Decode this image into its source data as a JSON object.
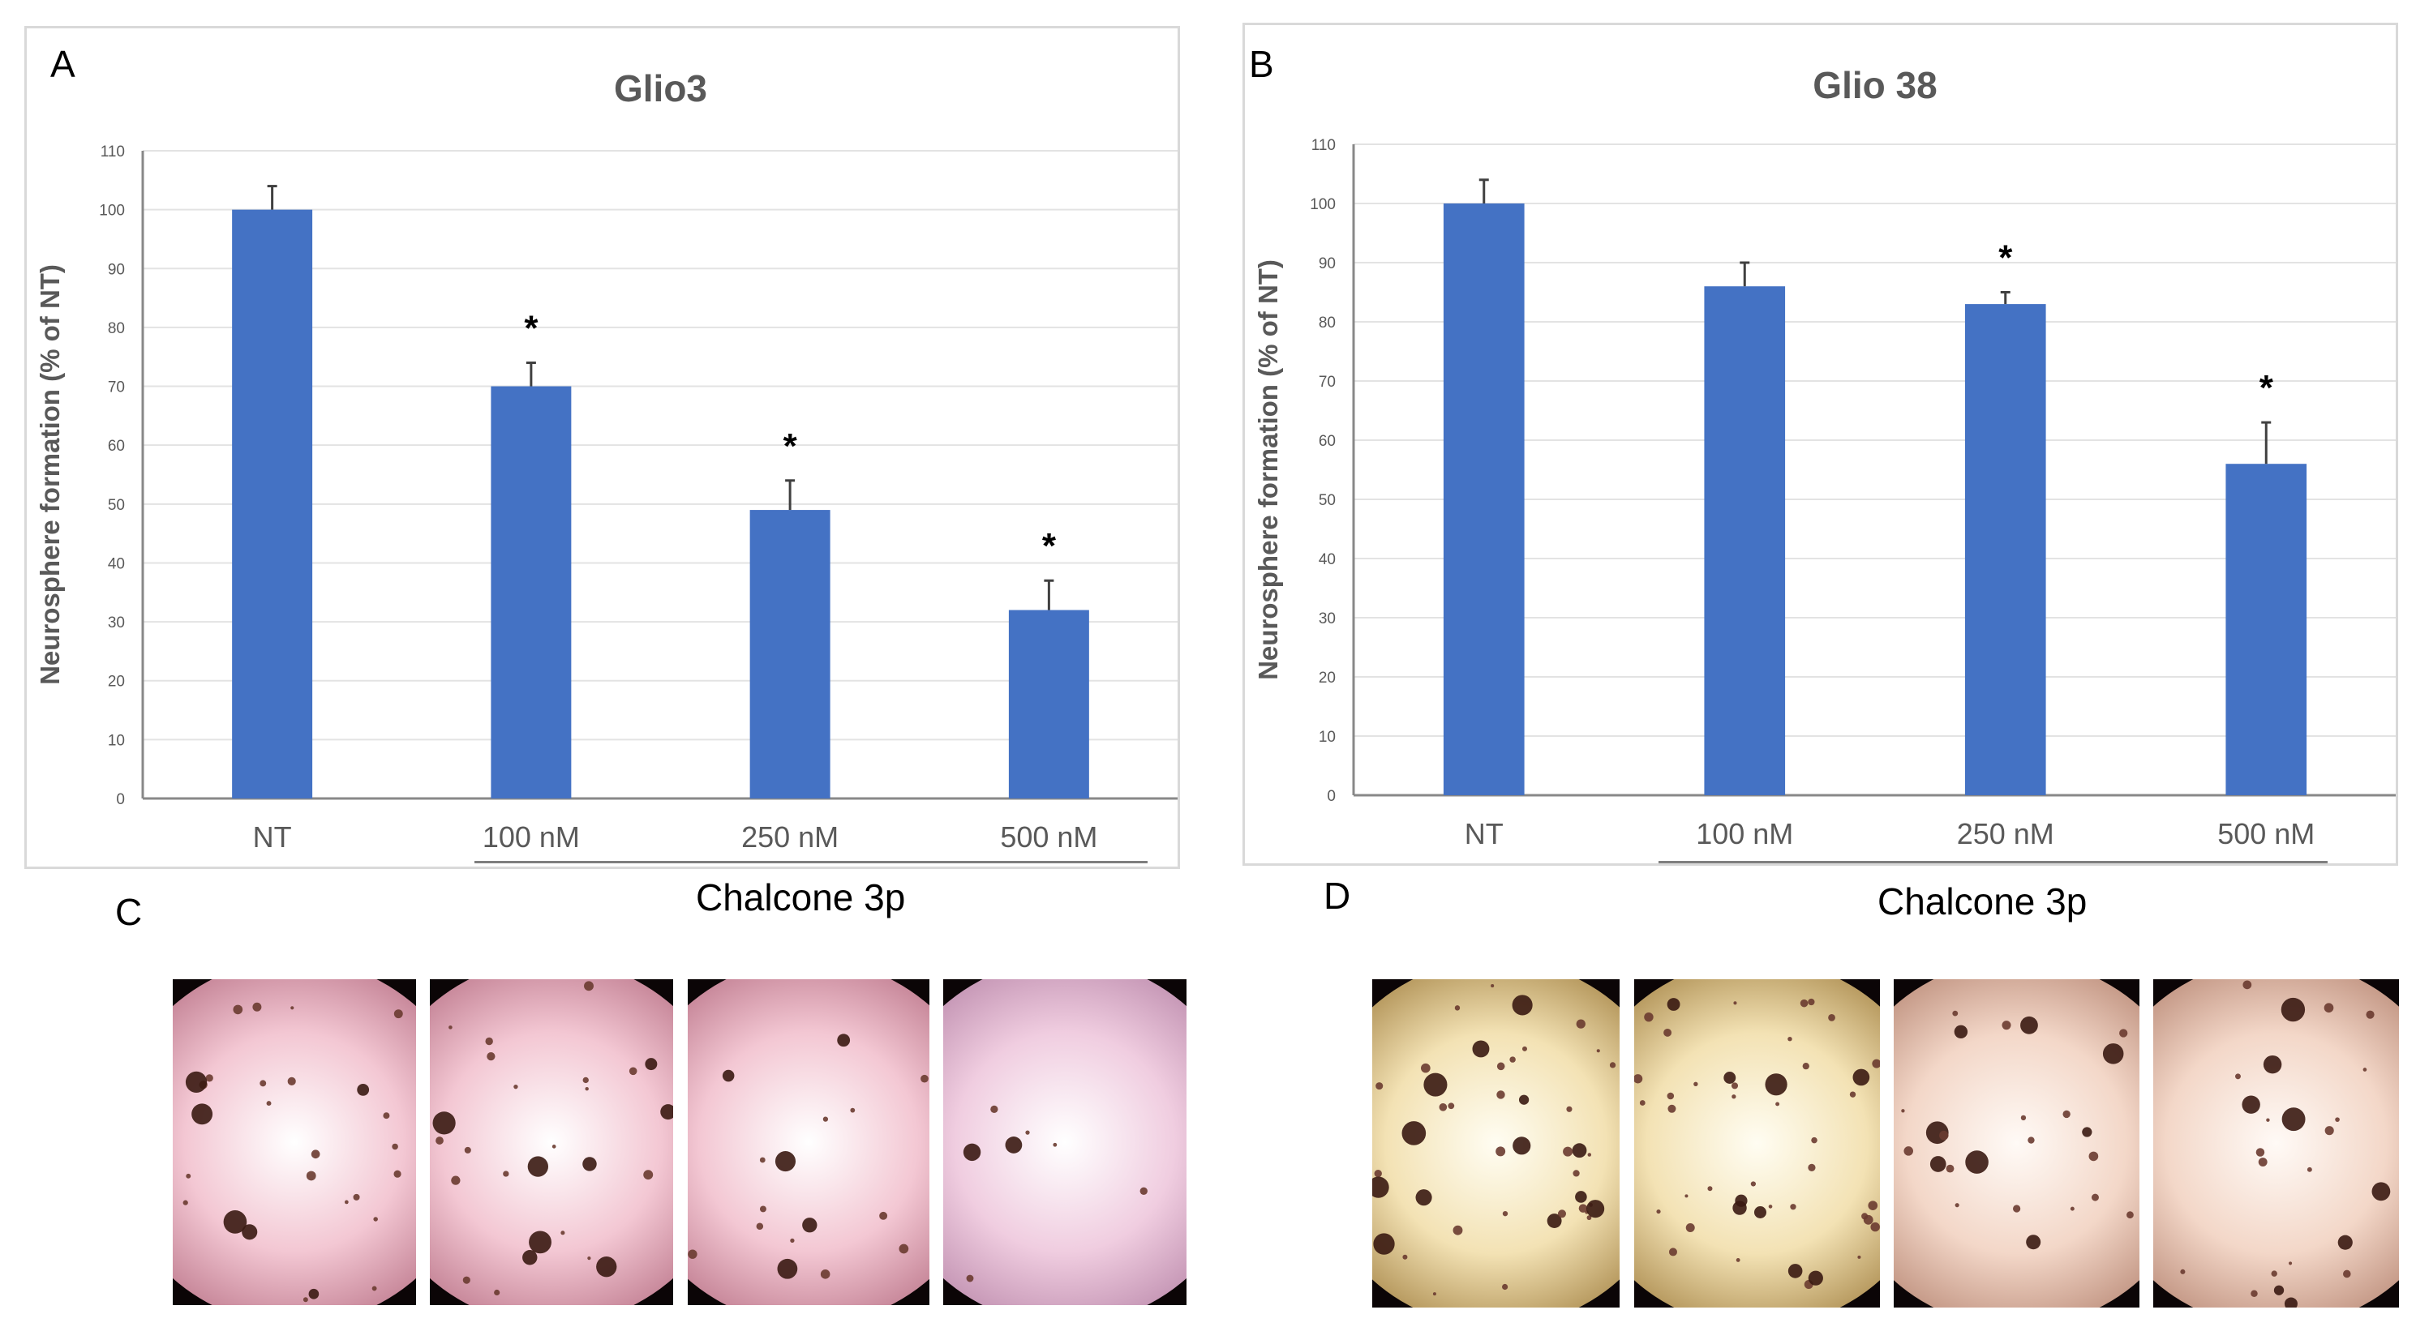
{
  "panels": {
    "A": "A",
    "B": "B",
    "C": "C",
    "D": "D"
  },
  "group_label": "Chalcone 3p",
  "colors": {
    "bar": "#4472c4",
    "grid": "#e3e3e3",
    "axis_text": "#595959"
  },
  "chart_data": [
    {
      "type": "bar",
      "title": "Glio3",
      "xlabel": "",
      "ylabel": "Neurosphere formation (% of NT)",
      "ylim": [
        0,
        110
      ],
      "yticks": [
        0,
        10,
        20,
        30,
        40,
        50,
        60,
        70,
        80,
        90,
        100,
        110
      ],
      "categories": [
        "NT",
        "100 nM",
        "250 nM",
        "500 nM"
      ],
      "values": [
        100,
        70,
        49,
        32
      ],
      "errors": [
        4,
        4,
        5,
        5
      ],
      "significance": [
        "",
        "*",
        "*",
        "*"
      ],
      "grid": true
    },
    {
      "type": "bar",
      "title": "Glio 38",
      "xlabel": "",
      "ylabel": "Neurosphere formation (% of NT)",
      "ylim": [
        0,
        110
      ],
      "yticks": [
        0,
        10,
        20,
        30,
        40,
        50,
        60,
        70,
        80,
        90,
        100,
        110
      ],
      "categories": [
        "NT",
        "100 nM",
        "250 nM",
        "500 nM"
      ],
      "values": [
        100,
        86,
        83,
        56
      ],
      "errors": [
        4,
        4,
        2,
        7
      ],
      "significance": [
        "",
        "",
        "*",
        "*"
      ],
      "grid": true
    }
  ],
  "micrographs": {
    "C": [
      {
        "tone": "pink",
        "density": "medium"
      },
      {
        "tone": "pink",
        "density": "medium"
      },
      {
        "tone": "pink",
        "density": "low"
      },
      {
        "tone": "lavender",
        "density": "very-low"
      }
    ],
    "D": [
      {
        "tone": "cream",
        "density": "high"
      },
      {
        "tone": "cream",
        "density": "high"
      },
      {
        "tone": "peach",
        "density": "medium"
      },
      {
        "tone": "peach",
        "density": "medium"
      }
    ]
  }
}
